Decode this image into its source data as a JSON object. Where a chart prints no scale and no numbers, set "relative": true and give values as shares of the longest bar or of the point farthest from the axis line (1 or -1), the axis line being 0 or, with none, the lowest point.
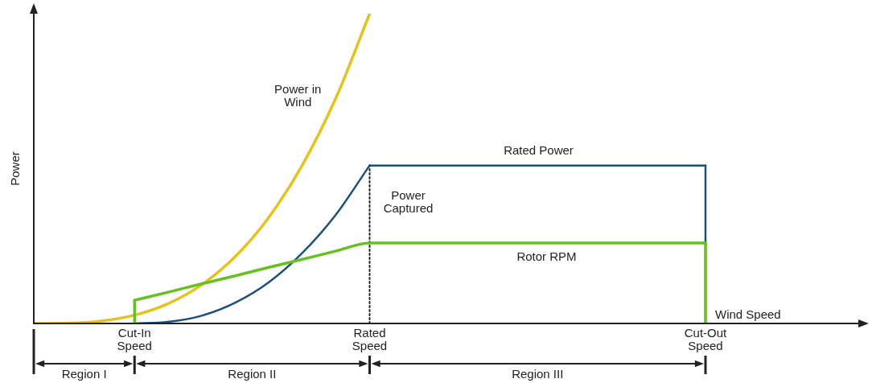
{
  "chart_data": {
    "type": "line",
    "relative": true,
    "xlabel": "Wind Speed",
    "ylabel": "Power",
    "legend": false,
    "grid": false,
    "marker": "none",
    "categories": [
      null,
      null,
      null,
      "Cut-In Speed",
      null,
      null,
      null,
      null,
      null,
      null,
      "Rated Speed",
      null,
      null,
      null,
      null,
      null,
      null,
      null,
      null,
      null,
      "Cut-Out Speed",
      null,
      null,
      null,
      null
    ],
    "series": [
      {
        "name": "Power in Wind",
        "color": "#e6c21c",
        "values": [
          0,
          0.001,
          0.008,
          0.027,
          0.064,
          0.125,
          0.216,
          0.343,
          0.512,
          0.729,
          1,
          null,
          null,
          null,
          null,
          null,
          null,
          null,
          null,
          null,
          null,
          null,
          null,
          null,
          null
        ]
      },
      {
        "name": "Power Captured",
        "color": "#1d4f7c",
        "values": [
          null,
          null,
          null,
          0,
          0.005,
          0.025,
          0.067,
          0.133,
          0.228,
          0.352,
          0.51,
          null,
          null,
          null,
          null,
          null,
          null,
          null,
          null,
          null,
          null,
          null,
          null,
          null,
          null
        ]
      },
      {
        "name": "Rated Power",
        "color": "#1d4f7c",
        "values": [
          null,
          null,
          null,
          null,
          null,
          null,
          null,
          null,
          null,
          null,
          0.51,
          0.51,
          0.51,
          0.51,
          0.51,
          0.51,
          0.51,
          0.51,
          0.51,
          0.51,
          0.51,
          null,
          null,
          null,
          null
        ]
      },
      {
        "color": "#1d4f7c",
        "x": [
          "Cut-Out Speed",
          "Cut-Out Speed"
        ],
        "values": [
          0.51,
          0.26
        ]
      },
      {
        "name": "Rotor RPM",
        "color": "#66c11e",
        "values": [
          null,
          null,
          null,
          0.075,
          0.101,
          0.128,
          0.154,
          0.181,
          0.207,
          0.234,
          0.26,
          0.26,
          0.26,
          0.26,
          0.26,
          0.26,
          0.26,
          0.26,
          0.26,
          0.26,
          0.26,
          null,
          null,
          null,
          null
        ]
      },
      {
        "color": "#66c11e",
        "x": [
          "Cut-In Speed",
          "Cut-In Speed"
        ],
        "values": [
          0,
          0.075
        ]
      },
      {
        "color": "#66c11e",
        "x": [
          "Cut-Out Speed",
          "Cut-Out Speed"
        ],
        "values": [
          0.26,
          0
        ]
      },
      {
        "color": "#222222",
        "line_style": "dotted",
        "x": [
          "Rated Speed",
          "Rated Speed"
        ],
        "values": [
          0,
          0.51
        ]
      }
    ],
    "annotations": [
      "Region I",
      "Region II",
      "Region III"
    ]
  }
}
